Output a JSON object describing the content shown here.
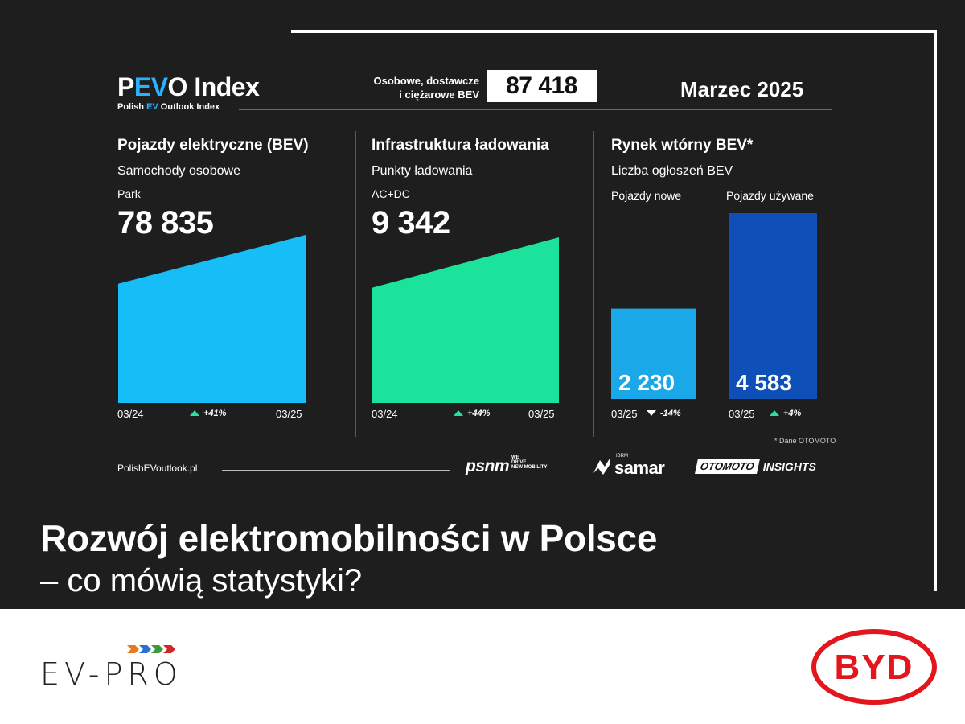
{
  "header": {
    "title_pre": "P",
    "title_accent": "EV",
    "title_post": "O Index",
    "subtitle_pre": "Polish ",
    "subtitle_accent": "EV",
    "subtitle_post": " Outlook Index",
    "total_label_line1": "Osobowe, dostawcze",
    "total_label_line2": "i ciężarowe BEV",
    "total_value": "87 418",
    "date": "Marzec 2025"
  },
  "sections": {
    "bev": {
      "title": "Pojazdy elektryczne (BEV)",
      "subtitle": "Samochody osobowe",
      "small": "Park",
      "value": "78 835",
      "x_start": "03/24",
      "x_end": "03/25",
      "change": "+41%"
    },
    "charging": {
      "title": "Infrastruktura ładowania",
      "subtitle": "Punkty ładowania",
      "small": "AC+DC",
      "value": "9 342",
      "x_start": "03/24",
      "x_end": "03/25",
      "change": "+44%"
    },
    "secondary": {
      "title": "Rynek wtórny BEV*",
      "subtitle": "Liczba ogłoszeń BEV",
      "new_label": "Pojazdy nowe",
      "used_label": "Pojazdy używane",
      "new_value": "2 230",
      "used_value": "4 583",
      "new_date": "03/25",
      "used_date": "03/25",
      "new_change": "-14%",
      "used_change": "+4%",
      "note": "* Dane OTOMOTO"
    }
  },
  "chart_data": [
    {
      "type": "area",
      "x": [
        "03/24",
        "03/25"
      ],
      "values": [
        55906,
        78835
      ],
      "title": "Pojazdy elektryczne (BEV)",
      "change": "+41%"
    },
    {
      "type": "area",
      "x": [
        "03/24",
        "03/25"
      ],
      "values": [
        6488,
        9342
      ],
      "title": "Infrastruktura ładowania",
      "change": "+44%"
    },
    {
      "type": "bar",
      "categories": [
        "Pojazdy nowe",
        "Pojazdy używane"
      ],
      "values": [
        2230,
        4583
      ],
      "title": "Rynek wtórny BEV*",
      "changes": [
        "-14%",
        "+4%"
      ]
    }
  ],
  "footer": {
    "url": "PolishEVoutlook.pl",
    "logo_psnm": "psnm",
    "logo_psnm_tag1": "WE",
    "logo_psnm_tag2": "DRIVE",
    "logo_psnm_tag3": "NEW MOBILITY!",
    "logo_samar_pre": "IBRM",
    "logo_samar": "samar",
    "logo_otomoto": "OTOMOTO",
    "logo_insights": "INSIGHTS"
  },
  "headline": {
    "line1": "Rozwój elektromobilności w Polsce",
    "line2": "– co mówią statystyki?"
  },
  "branding": {
    "evpro": "EV-PRO",
    "byd": "BYD"
  },
  "colors": {
    "bev_area": "#17bdf7",
    "charging_area": "#1be39b",
    "new_bar": "#1aa8e8",
    "used_bar": "#0e4fb8",
    "byd_red": "#e3161e"
  }
}
